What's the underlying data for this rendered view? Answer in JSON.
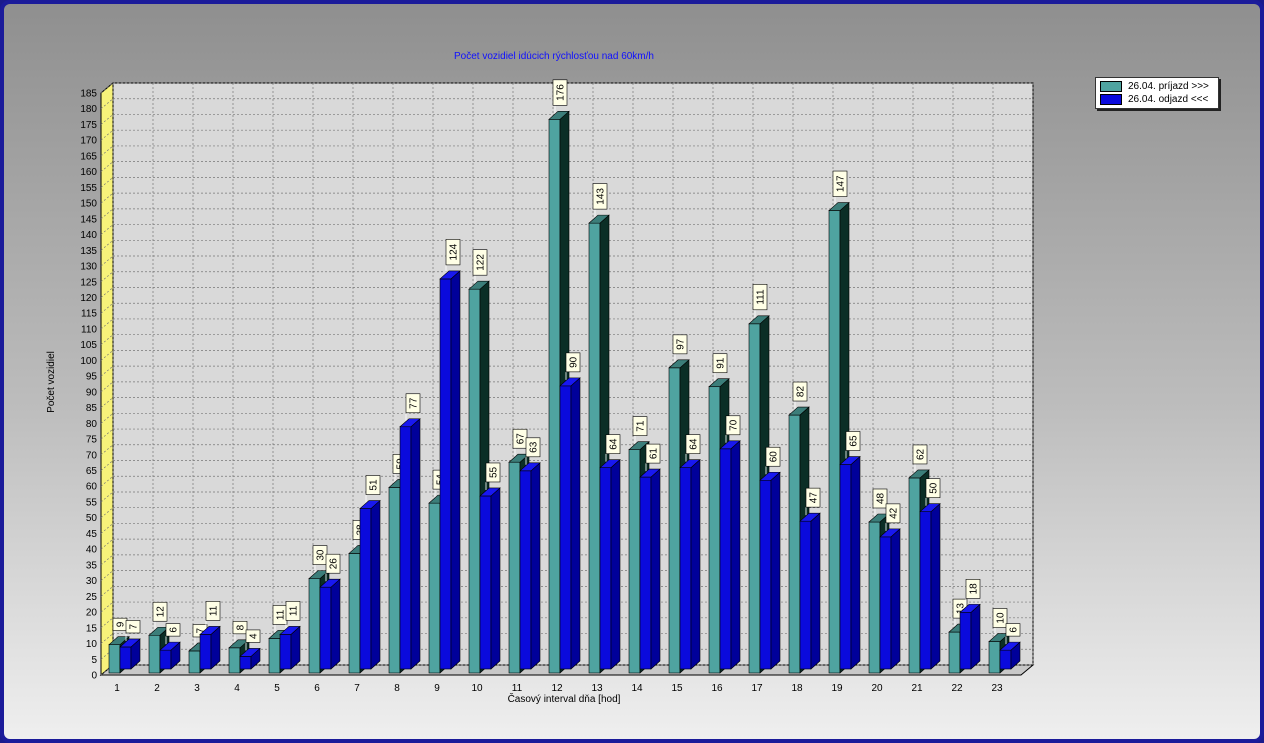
{
  "chart_data": {
    "type": "bar",
    "title": "Počet vozidiel idúcich rýchlosťou nad 60km/h",
    "xlabel": "Časový interval dňa [hod]",
    "ylabel": "Počet vozidiel",
    "ylim": [
      0,
      185
    ],
    "ytick_step": 5,
    "grid": true,
    "legend_position": "top-right",
    "categories": [
      "1",
      "2",
      "3",
      "4",
      "5",
      "6",
      "7",
      "8",
      "9",
      "10",
      "11",
      "12",
      "13",
      "14",
      "15",
      "16",
      "17",
      "18",
      "19",
      "20",
      "21",
      "22",
      "23"
    ],
    "series": [
      {
        "name": "26.04.  príjazd >>>",
        "color": "#4fa3a0",
        "values": [
          9,
          12,
          7,
          8,
          11,
          30,
          38,
          59,
          54,
          122,
          67,
          176,
          143,
          71,
          97,
          91,
          111,
          82,
          147,
          48,
          62,
          13,
          10
        ]
      },
      {
        "name": "26.04.  odjazd <<<",
        "color": "#0a0adc",
        "values": [
          7,
          6,
          11,
          4,
          11,
          26,
          51,
          77,
          124,
          55,
          63,
          90,
          64,
          61,
          64,
          70,
          60,
          47,
          65,
          42,
          50,
          18,
          6
        ]
      }
    ]
  }
}
